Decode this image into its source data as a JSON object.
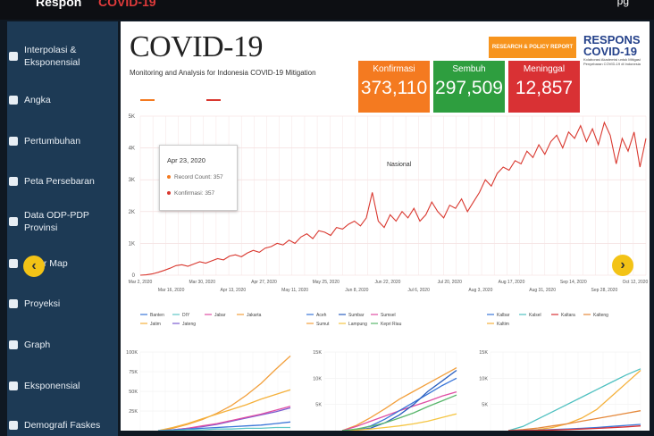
{
  "topbar": {
    "left_text": "Respon",
    "left_text_red": "COVID-19",
    "right_text": "pg"
  },
  "sidebar": {
    "items": [
      {
        "label": "Interpolasi & Eksponensial",
        "icon": "chart-icon"
      },
      {
        "label": "Angka",
        "icon": "number-icon"
      },
      {
        "label": "Pertumbuhan",
        "icon": "growth-icon"
      },
      {
        "label": "Peta Persebaran",
        "icon": "map-icon"
      },
      {
        "label": "Data ODP-PDP Provinsi",
        "icon": "table-icon"
      },
      {
        "label": "er Map",
        "icon": "cluster-map-icon"
      },
      {
        "label": "Proyeksi",
        "icon": "projection-icon"
      },
      {
        "label": "Graph",
        "icon": "graph-icon"
      },
      {
        "label": "Eksponensial",
        "icon": "exponential-icon"
      },
      {
        "label": "Demografi Faskes",
        "icon": "hospital-icon"
      }
    ]
  },
  "header": {
    "title": "COVID-19",
    "subtitle": "Monitoring and Analysis for Indonesia COVID-19 Mitigation",
    "research_button": "RESEARCH & POLICY REPORT",
    "logo_line1": "RESPONS",
    "logo_line2": "COVID-19",
    "logo_small": "Kolaborasi Akademisi untuk Mitigasi Penyebaran COVID-19 di Indonesia"
  },
  "stats": [
    {
      "label": "Konfirmasi",
      "value": "373,110",
      "color": "#f47a20"
    },
    {
      "label": "Sembuh",
      "value": "297,509",
      "color": "#2e9e3f"
    },
    {
      "label": "Meninggal",
      "value": "12,857",
      "color": "#d93134"
    }
  ],
  "colors": {
    "konfirmasi": "#d9382f",
    "record": "#f47a20",
    "sidebar": "#1d3a55",
    "nav_button": "#f3c316"
  },
  "tooltip": {
    "date": "Apr 23, 2020",
    "row1": "Record Count: 357",
    "row2": "Konfirmasi: 357"
  },
  "nav": {
    "prev_icon": "‹",
    "next_icon": "›"
  },
  "chart_data": [
    {
      "type": "line",
      "title": "",
      "annotation": "Nasional",
      "ylim": [
        0,
        5000
      ],
      "y_ticks": [
        "0",
        "1K",
        "2K",
        "3K",
        "4K",
        "5K"
      ],
      "x_ticks_top": [
        "Mar 2, 2020",
        "Mar 30, 2020",
        "Apr 27, 2020",
        "May 25, 2020",
        "Jun 22, 2020",
        "Jul 20, 2020",
        "Aug 17, 2020",
        "Sep 14, 2020",
        "Oct 12, 2020"
      ],
      "x_ticks_bottom": [
        "Mar 16, 2020",
        "Apr 13, 2020",
        "May 11, 2020",
        "Jun 8, 2020",
        "Jul 6, 2020",
        "Aug 3, 2020",
        "Aug 31, 2020",
        "Sep 28, 2020"
      ],
      "series": [
        {
          "name": "Konfirmasi",
          "values": [
            0,
            10,
            40,
            90,
            150,
            220,
            300,
            330,
            280,
            350,
            420,
            380,
            450,
            520,
            480,
            600,
            640,
            580,
            700,
            780,
            720,
            850,
            900,
            1000,
            950,
            1100,
            1000,
            1200,
            1300,
            1150,
            1400,
            1350,
            1250,
            1500,
            1450,
            1600,
            1700,
            1550,
            1800,
            2600,
            1700,
            1500,
            1900,
            1700,
            2000,
            1800,
            2100,
            1700,
            1900,
            2300,
            2000,
            1800,
            2200,
            2100,
            2400,
            2000,
            2300,
            2600,
            3000,
            2800,
            3200,
            3400,
            3300,
            3600,
            3500,
            3900,
            3700,
            4100,
            3800,
            4200,
            4400,
            4000,
            4500,
            4300,
            4700,
            4200,
            4600,
            4100,
            4800,
            4400,
            3500,
            4300,
            3900,
            4500,
            3400,
            4300
          ]
        }
      ]
    },
    {
      "type": "line",
      "ylim": [
        0,
        100000
      ],
      "y_ticks": [
        "25K",
        "50K",
        "75K",
        "100K"
      ],
      "legend": [
        "Banten",
        "DIY",
        "Jabar",
        "Jakarta",
        "Jatim",
        "Jateng"
      ],
      "series": [
        {
          "name": "Jakarta",
          "values": [
            0,
            3,
            8,
            14,
            22,
            32,
            45,
            60,
            78,
            95
          ],
          "color": "#f2a03d"
        },
        {
          "name": "Jatim",
          "values": [
            0,
            4,
            9,
            15,
            21,
            27,
            33,
            40,
            46,
            52
          ],
          "color": "#f5b13b"
        },
        {
          "name": "Jateng",
          "values": [
            0,
            1,
            3,
            5,
            8,
            12,
            16,
            20,
            24,
            29
          ],
          "color": "#7a5bd0"
        },
        {
          "name": "Jabar",
          "values": [
            0,
            1,
            3,
            6,
            9,
            13,
            17,
            21,
            26,
            31
          ],
          "color": "#e04ea4"
        },
        {
          "name": "Banten",
          "values": [
            0,
            1,
            2,
            3,
            4,
            5,
            6,
            7,
            9,
            11
          ],
          "color": "#3a76d8"
        },
        {
          "name": "DIY",
          "values": [
            0,
            0,
            1,
            1,
            2,
            2,
            3,
            3,
            4,
            4
          ],
          "color": "#5fc6c6"
        }
      ]
    },
    {
      "type": "line",
      "ylim": [
        0,
        15000
      ],
      "y_ticks": [
        "5K",
        "10K",
        "15K"
      ],
      "legend": [
        "Aceh",
        "Sumbar",
        "Sumsel",
        "Sumut",
        "Lampung",
        "Kepri Riau"
      ],
      "series": [
        {
          "name": "Sumut",
          "values": [
            0,
            1000,
            2500,
            4200,
            6000,
            7500,
            9000,
            10500,
            12000
          ],
          "color": "#f2a03d"
        },
        {
          "name": "Sumsel",
          "values": [
            0,
            800,
            1800,
            2800,
            3800,
            4700,
            5600,
            6600,
            7400
          ],
          "color": "#e04ea4"
        },
        {
          "name": "Aceh",
          "values": [
            0,
            200,
            900,
            2200,
            3800,
            5400,
            7000,
            8600,
            10000
          ],
          "color": "#3a76d8"
        },
        {
          "name": "Sumbar",
          "values": [
            0,
            100,
            500,
            1500,
            3000,
            5000,
            7500,
            9500,
            11500
          ],
          "color": "#2a5fbf"
        },
        {
          "name": "Lampung",
          "values": [
            0,
            100,
            300,
            600,
            900,
            1300,
            1800,
            2500,
            3200
          ],
          "color": "#f5c542"
        },
        {
          "name": "Kepri Riau",
          "values": [
            0,
            300,
            800,
            1500,
            2400,
            3400,
            4600,
            5700,
            6800
          ],
          "color": "#59b66c"
        }
      ]
    },
    {
      "type": "line",
      "ylim": [
        0,
        15000
      ],
      "y_ticks": [
        "5K",
        "10K",
        "15K"
      ],
      "legend": [
        "Kalbar",
        "Kalsel",
        "Kaltara",
        "Kalteng",
        "Kaltim"
      ],
      "series": [
        {
          "name": "Kalsel",
          "values": [
            0,
            800,
            2200,
            3600,
            5000,
            6400,
            7800,
            9200,
            10600,
            11800
          ],
          "color": "#4fc0c0"
        },
        {
          "name": "Kaltim",
          "values": [
            0,
            0,
            200,
            600,
            1300,
            2400,
            4000,
            6500,
            9000,
            11500
          ],
          "color": "#f5b13b"
        },
        {
          "name": "Kalteng",
          "values": [
            0,
            200,
            500,
            900,
            1300,
            1800,
            2300,
            2800,
            3300,
            3800
          ],
          "color": "#e5883a"
        },
        {
          "name": "Kalbar",
          "values": [
            0,
            50,
            100,
            200,
            300,
            450,
            600,
            800,
            1000,
            1200
          ],
          "color": "#3a76d8"
        },
        {
          "name": "Kaltara",
          "values": [
            0,
            20,
            60,
            120,
            200,
            300,
            420,
            560,
            720,
            900
          ],
          "color": "#d93134"
        }
      ]
    }
  ]
}
